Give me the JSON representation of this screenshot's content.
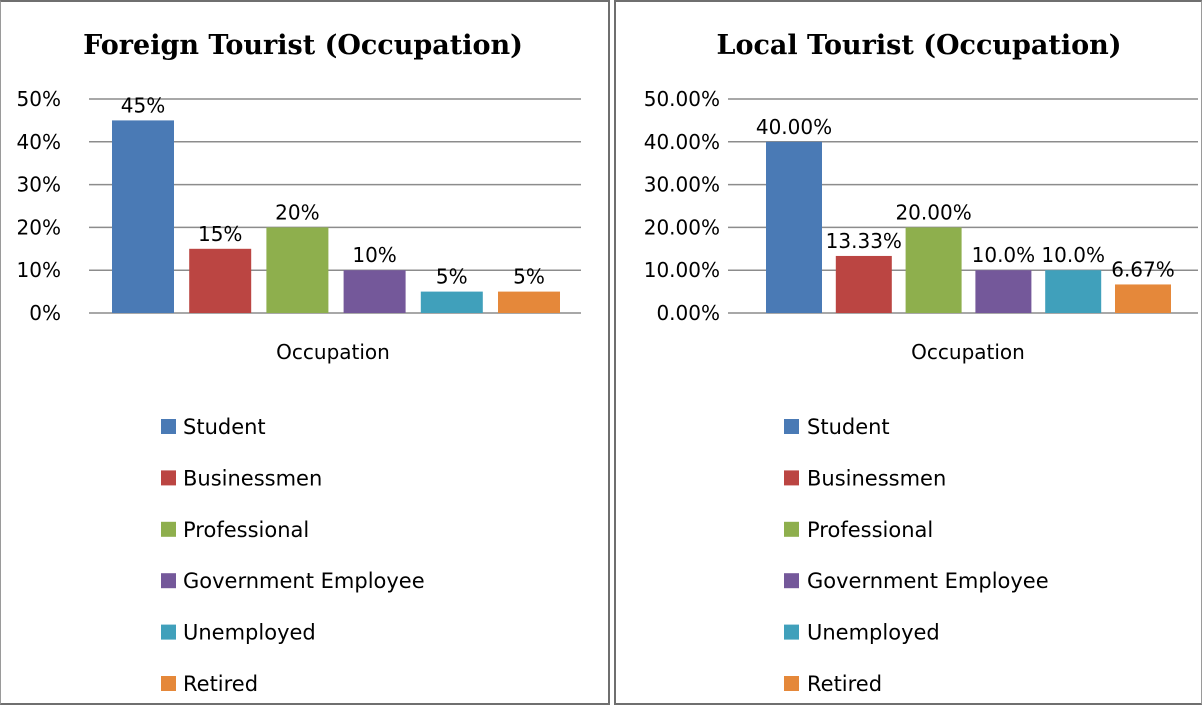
{
  "chart_data": [
    {
      "type": "bar",
      "title": "Foreign Tourist (Occupation)",
      "xlabel": "Occupation",
      "categories": [
        "Occupation"
      ],
      "ylim": [
        0,
        50
      ],
      "yticks": [
        0,
        10,
        20,
        30,
        40,
        50
      ],
      "ytick_labels": [
        "0%",
        "10%",
        "20%",
        "30%",
        "40%",
        "50%"
      ],
      "grid": true,
      "legend_position": "bottom",
      "series": [
        {
          "name": "Student",
          "values": [
            45
          ],
          "label": "45%",
          "color": "#4a7ab5"
        },
        {
          "name": "Businessmen",
          "values": [
            15
          ],
          "label": "15%",
          "color": "#bb4542"
        },
        {
          "name": "Professional",
          "values": [
            20
          ],
          "label": "20%",
          "color": "#8eaf4d"
        },
        {
          "name": "Government Employee",
          "values": [
            10
          ],
          "label": "10%",
          "color": "#74589a"
        },
        {
          "name": "Unemployed",
          "values": [
            5
          ],
          "label": "5%",
          "color": "#40a0bb"
        },
        {
          "name": "Retired",
          "values": [
            5
          ],
          "label": "5%",
          "color": "#e5883a"
        }
      ]
    },
    {
      "type": "bar",
      "title": "Local Tourist (Occupation)",
      "xlabel": "Occupation",
      "categories": [
        "Occupation"
      ],
      "ylim": [
        0,
        50
      ],
      "yticks": [
        0,
        10,
        20,
        30,
        40,
        50
      ],
      "ytick_labels": [
        "0.00%",
        "10.00%",
        "20.00%",
        "30.00%",
        "40.00%",
        "50.00%"
      ],
      "grid": true,
      "legend_position": "bottom",
      "series": [
        {
          "name": "Student",
          "values": [
            40
          ],
          "label": "40.00%",
          "color": "#4a7ab5"
        },
        {
          "name": "Businessmen",
          "values": [
            13.33
          ],
          "label": "13.33%",
          "color": "#bb4542"
        },
        {
          "name": "Professional",
          "values": [
            20
          ],
          "label": "20.00%",
          "color": "#8eaf4d"
        },
        {
          "name": "Government Employee",
          "values": [
            10
          ],
          "label": "10.0%",
          "color": "#74589a"
        },
        {
          "name": "Unemployed",
          "values": [
            10
          ],
          "label": "10.0%",
          "color": "#40a0bb"
        },
        {
          "name": "Retired",
          "values": [
            6.67
          ],
          "label": "6.67%",
          "color": "#e5883a"
        }
      ]
    }
  ]
}
